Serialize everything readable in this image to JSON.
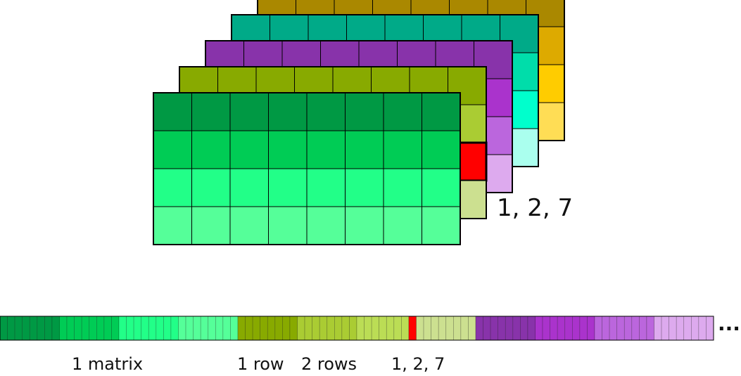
{
  "labels": {
    "index_near_stack": "1,  2,  7",
    "strip_matrix": "1 matrix",
    "strip_row": "1 row",
    "strip_rows": "2 rows",
    "strip_index": "1, 2, 7",
    "ellipsis": "..."
  },
  "grid": {
    "rows": 4,
    "cols": 8
  },
  "highlight": {
    "matrix": 1,
    "row": 2,
    "col": 7,
    "color": "#ff0000"
  },
  "matrices": [
    {
      "row_colors": [
        "#009944",
        "#00cc55",
        "#22ff88",
        "#55ff99"
      ]
    },
    {
      "row_colors": [
        "#88aa00",
        "#aacc33",
        "#bbdd55",
        "#cce090"
      ]
    },
    {
      "row_colors": [
        "#8833aa",
        "#aa33cc",
        "#bb66dd",
        "#ddaaee"
      ]
    },
    {
      "row_colors": [
        "#00aa88",
        "#00ddaa",
        "#00ffcc",
        "#aaffee"
      ]
    },
    {
      "row_colors": [
        "#aa8800",
        "#ddaa00",
        "#ffcc00",
        "#ffdd55"
      ]
    }
  ],
  "strip": {
    "matrices_shown": 3
  }
}
